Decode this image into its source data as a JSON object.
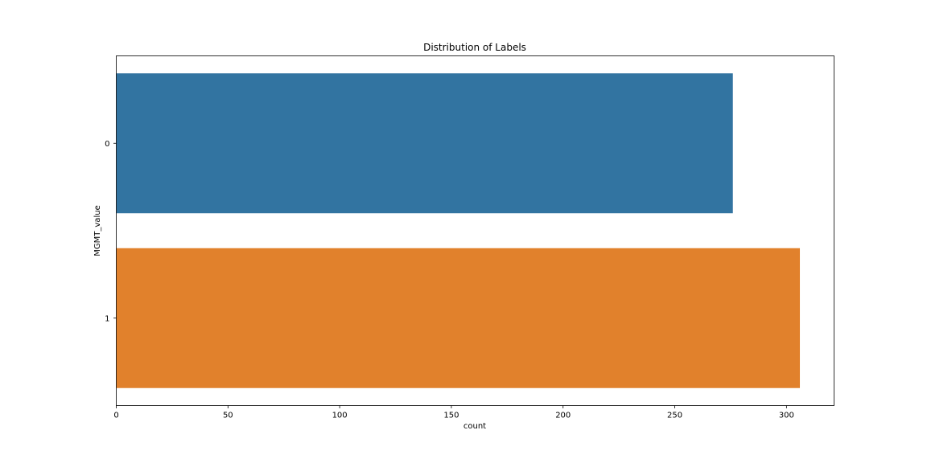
{
  "chart_data": {
    "type": "bar",
    "orientation": "horizontal",
    "title": "Distribution of Labels",
    "xlabel": "count",
    "ylabel": "MGMT_value",
    "categories": [
      "0",
      "1"
    ],
    "values": [
      276,
      306
    ],
    "xlim": [
      0,
      321.3
    ],
    "xticks": [
      0,
      50,
      100,
      150,
      200,
      250,
      300
    ],
    "grid": false,
    "colors": [
      "#3274a1",
      "#e1812c"
    ]
  }
}
